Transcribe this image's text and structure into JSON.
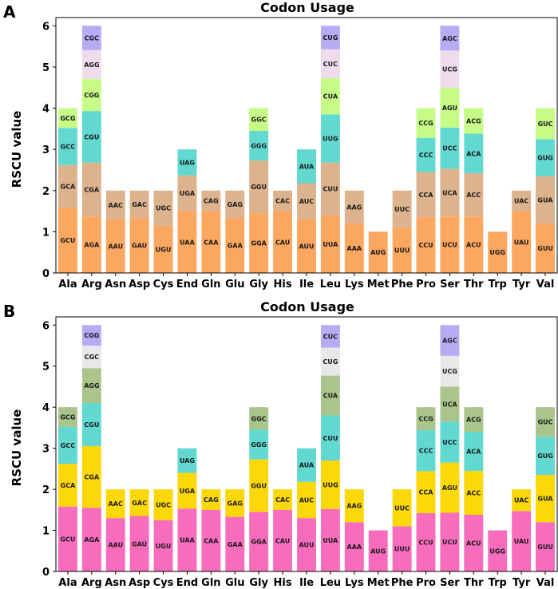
{
  "chart_data": [
    {
      "type": "bar",
      "stacked": true,
      "panel": "A",
      "title": "Codon Usage",
      "xlabel": "",
      "ylabel": "RSCU value",
      "ylim": [
        0,
        6.2
      ],
      "yticks": [
        0,
        1,
        2,
        3,
        4,
        5,
        6
      ],
      "grid": false,
      "palette": [
        "#fca75f",
        "#dcb38d",
        "#62d9d0",
        "#c6fb87",
        "#eedced",
        "#b8aaf3"
      ],
      "categories": [
        "Ala",
        "Arg",
        "Asn",
        "Asp",
        "Cys",
        "End",
        "Gln",
        "Glu",
        "Gly",
        "His",
        "Ile",
        "Leu",
        "Lys",
        "Met",
        "Phe",
        "Pro",
        "Ser",
        "Thr",
        "Trp",
        "Tyr",
        "Val"
      ],
      "stacks": [
        [
          {
            "codon": "GCU",
            "value": 1.58
          },
          {
            "codon": "GCA",
            "value": 1.04
          },
          {
            "codon": "GCC",
            "value": 0.9
          },
          {
            "codon": "GCG",
            "value": 0.48
          }
        ],
        [
          {
            "codon": "AGA",
            "value": 1.37
          },
          {
            "codon": "CGA",
            "value": 1.31
          },
          {
            "codon": "CGU",
            "value": 1.25
          },
          {
            "codon": "CGG",
            "value": 0.78
          },
          {
            "codon": "AGG",
            "value": 0.7
          },
          {
            "codon": "CGC",
            "value": 0.59
          }
        ],
        [
          {
            "codon": "AAU",
            "value": 1.3
          },
          {
            "codon": "AAC",
            "value": 0.7
          }
        ],
        [
          {
            "codon": "GAU",
            "value": 1.33
          },
          {
            "codon": "GAC",
            "value": 0.67
          }
        ],
        [
          {
            "codon": "UGU",
            "value": 1.15
          },
          {
            "codon": "UGC",
            "value": 0.85
          }
        ],
        [
          {
            "codon": "UAA",
            "value": 1.5
          },
          {
            "codon": "UGA",
            "value": 0.87
          },
          {
            "codon": "UAG",
            "value": 0.63
          }
        ],
        [
          {
            "codon": "CAA",
            "value": 1.5
          },
          {
            "codon": "CAG",
            "value": 0.5
          }
        ],
        [
          {
            "codon": "GAA",
            "value": 1.33
          },
          {
            "codon": "GAG",
            "value": 0.67
          }
        ],
        [
          {
            "codon": "GGA",
            "value": 1.45
          },
          {
            "codon": "GGU",
            "value": 1.28
          },
          {
            "codon": "GGG",
            "value": 0.72
          },
          {
            "codon": "GGC",
            "value": 0.55
          }
        ],
        [
          {
            "codon": "CAU",
            "value": 1.5
          },
          {
            "codon": "CAC",
            "value": 0.5
          }
        ],
        [
          {
            "codon": "AUU",
            "value": 1.3
          },
          {
            "codon": "AUC",
            "value": 0.88
          },
          {
            "codon": "AUA",
            "value": 0.82
          }
        ],
        [
          {
            "codon": "UUA",
            "value": 1.4
          },
          {
            "codon": "CUU",
            "value": 1.28
          },
          {
            "codon": "UUG",
            "value": 1.17
          },
          {
            "codon": "CUA",
            "value": 0.88
          },
          {
            "codon": "CUC",
            "value": 0.7
          },
          {
            "codon": "CUG",
            "value": 0.57
          }
        ],
        [
          {
            "codon": "AAA",
            "value": 1.2
          },
          {
            "codon": "AAG",
            "value": 0.8
          }
        ],
        [
          {
            "codon": "AUG",
            "value": 1.0
          }
        ],
        [
          {
            "codon": "UUU",
            "value": 1.1
          },
          {
            "codon": "UUC",
            "value": 0.9
          }
        ],
        [
          {
            "codon": "CCU",
            "value": 1.35
          },
          {
            "codon": "CCA",
            "value": 1.1
          },
          {
            "codon": "CCC",
            "value": 0.83
          },
          {
            "codon": "CCG",
            "value": 0.72
          }
        ],
        [
          {
            "codon": "UCU",
            "value": 1.37
          },
          {
            "codon": "UCA",
            "value": 1.16
          },
          {
            "codon": "UCC",
            "value": 1.0
          },
          {
            "codon": "AGU",
            "value": 0.97
          },
          {
            "codon": "UCG",
            "value": 0.9
          },
          {
            "codon": "AGC",
            "value": 0.6
          }
        ],
        [
          {
            "codon": "ACU",
            "value": 1.37
          },
          {
            "codon": "ACC",
            "value": 1.05
          },
          {
            "codon": "ACA",
            "value": 0.96
          },
          {
            "codon": "ACG",
            "value": 0.62
          }
        ],
        [
          {
            "codon": "UGG",
            "value": 1.0
          }
        ],
        [
          {
            "codon": "UAU",
            "value": 1.5
          },
          {
            "codon": "UAC",
            "value": 0.5
          }
        ],
        [
          {
            "codon": "GUU",
            "value": 1.2
          },
          {
            "codon": "GUA",
            "value": 1.15
          },
          {
            "codon": "GUG",
            "value": 0.9
          },
          {
            "codon": "GUC",
            "value": 0.75
          }
        ]
      ]
    },
    {
      "type": "bar",
      "stacked": true,
      "panel": "B",
      "title": "Codon Usage",
      "xlabel": "",
      "ylabel": "RSCU value",
      "ylim": [
        0,
        6.2
      ],
      "yticks": [
        0,
        1,
        2,
        3,
        4,
        5,
        6
      ],
      "grid": false,
      "palette": [
        "#f86cbd",
        "#fdd808",
        "#62d9d0",
        "#a9c58b",
        "#e8e8e8",
        "#b8aaf3"
      ],
      "categories": [
        "Ala",
        "Arg",
        "Asn",
        "Asp",
        "Cys",
        "End",
        "Gln",
        "Glu",
        "Gly",
        "His",
        "Ile",
        "Leu",
        "Lys",
        "Met",
        "Phe",
        "Pro",
        "Ser",
        "Thr",
        "Trp",
        "Tyr",
        "Val"
      ],
      "stacks": [
        [
          {
            "codon": "GCU",
            "value": 1.58
          },
          {
            "codon": "GCA",
            "value": 1.04
          },
          {
            "codon": "GCC",
            "value": 0.9
          },
          {
            "codon": "GCG",
            "value": 0.48
          }
        ],
        [
          {
            "codon": "AGA",
            "value": 1.55
          },
          {
            "codon": "CGA",
            "value": 1.5
          },
          {
            "codon": "CGU",
            "value": 1.05
          },
          {
            "codon": "AGG",
            "value": 0.85
          },
          {
            "codon": "CGC",
            "value": 0.55
          },
          {
            "codon": "CGG",
            "value": 0.5
          }
        ],
        [
          {
            "codon": "AAU",
            "value": 1.3
          },
          {
            "codon": "AAC",
            "value": 0.7
          }
        ],
        [
          {
            "codon": "GAU",
            "value": 1.35
          },
          {
            "codon": "GAC",
            "value": 0.65
          }
        ],
        [
          {
            "codon": "UGU",
            "value": 1.25
          },
          {
            "codon": "UGC",
            "value": 0.75
          }
        ],
        [
          {
            "codon": "UAA",
            "value": 1.53
          },
          {
            "codon": "UGA",
            "value": 0.87
          },
          {
            "codon": "UAG",
            "value": 0.6
          }
        ],
        [
          {
            "codon": "CAA",
            "value": 1.5
          },
          {
            "codon": "CAG",
            "value": 0.5
          }
        ],
        [
          {
            "codon": "GAA",
            "value": 1.33
          },
          {
            "codon": "GAG",
            "value": 0.67
          }
        ],
        [
          {
            "codon": "GGA",
            "value": 1.45
          },
          {
            "codon": "GGU",
            "value": 1.28
          },
          {
            "codon": "GGG",
            "value": 0.72
          },
          {
            "codon": "GGC",
            "value": 0.55
          }
        ],
        [
          {
            "codon": "CAU",
            "value": 1.5
          },
          {
            "codon": "CAC",
            "value": 0.5
          }
        ],
        [
          {
            "codon": "AUU",
            "value": 1.3
          },
          {
            "codon": "AUC",
            "value": 0.88
          },
          {
            "codon": "AUA",
            "value": 0.82
          }
        ],
        [
          {
            "codon": "UUA",
            "value": 1.52
          },
          {
            "codon": "UUG",
            "value": 1.18
          },
          {
            "codon": "CUU",
            "value": 1.1
          },
          {
            "codon": "CUA",
            "value": 0.97
          },
          {
            "codon": "CUG",
            "value": 0.68
          },
          {
            "codon": "CUC",
            "value": 0.55
          }
        ],
        [
          {
            "codon": "AAA",
            "value": 1.2
          },
          {
            "codon": "AAG",
            "value": 0.8
          }
        ],
        [
          {
            "codon": "AUG",
            "value": 1.0
          }
        ],
        [
          {
            "codon": "UUU",
            "value": 1.1
          },
          {
            "codon": "UUC",
            "value": 0.9
          }
        ],
        [
          {
            "codon": "CCU",
            "value": 1.42
          },
          {
            "codon": "CCA",
            "value": 1.02
          },
          {
            "codon": "CCC",
            "value": 1.0
          },
          {
            "codon": "CCG",
            "value": 0.56
          }
        ],
        [
          {
            "codon": "UCU",
            "value": 1.43
          },
          {
            "codon": "AGU",
            "value": 1.22
          },
          {
            "codon": "UCC",
            "value": 1.0
          },
          {
            "codon": "UCA",
            "value": 0.85
          },
          {
            "codon": "UCG",
            "value": 0.75
          },
          {
            "codon": "AGC",
            "value": 0.75
          }
        ],
        [
          {
            "codon": "ACU",
            "value": 1.38
          },
          {
            "codon": "ACC",
            "value": 1.07
          },
          {
            "codon": "ACA",
            "value": 0.95
          },
          {
            "codon": "ACG",
            "value": 0.6
          }
        ],
        [
          {
            "codon": "UGG",
            "value": 1.0
          }
        ],
        [
          {
            "codon": "UAU",
            "value": 1.47
          },
          {
            "codon": "UAC",
            "value": 0.53
          }
        ],
        [
          {
            "codon": "GUU",
            "value": 1.2
          },
          {
            "codon": "GUA",
            "value": 1.15
          },
          {
            "codon": "GUG",
            "value": 0.93
          },
          {
            "codon": "GUC",
            "value": 0.72
          }
        ]
      ]
    }
  ]
}
